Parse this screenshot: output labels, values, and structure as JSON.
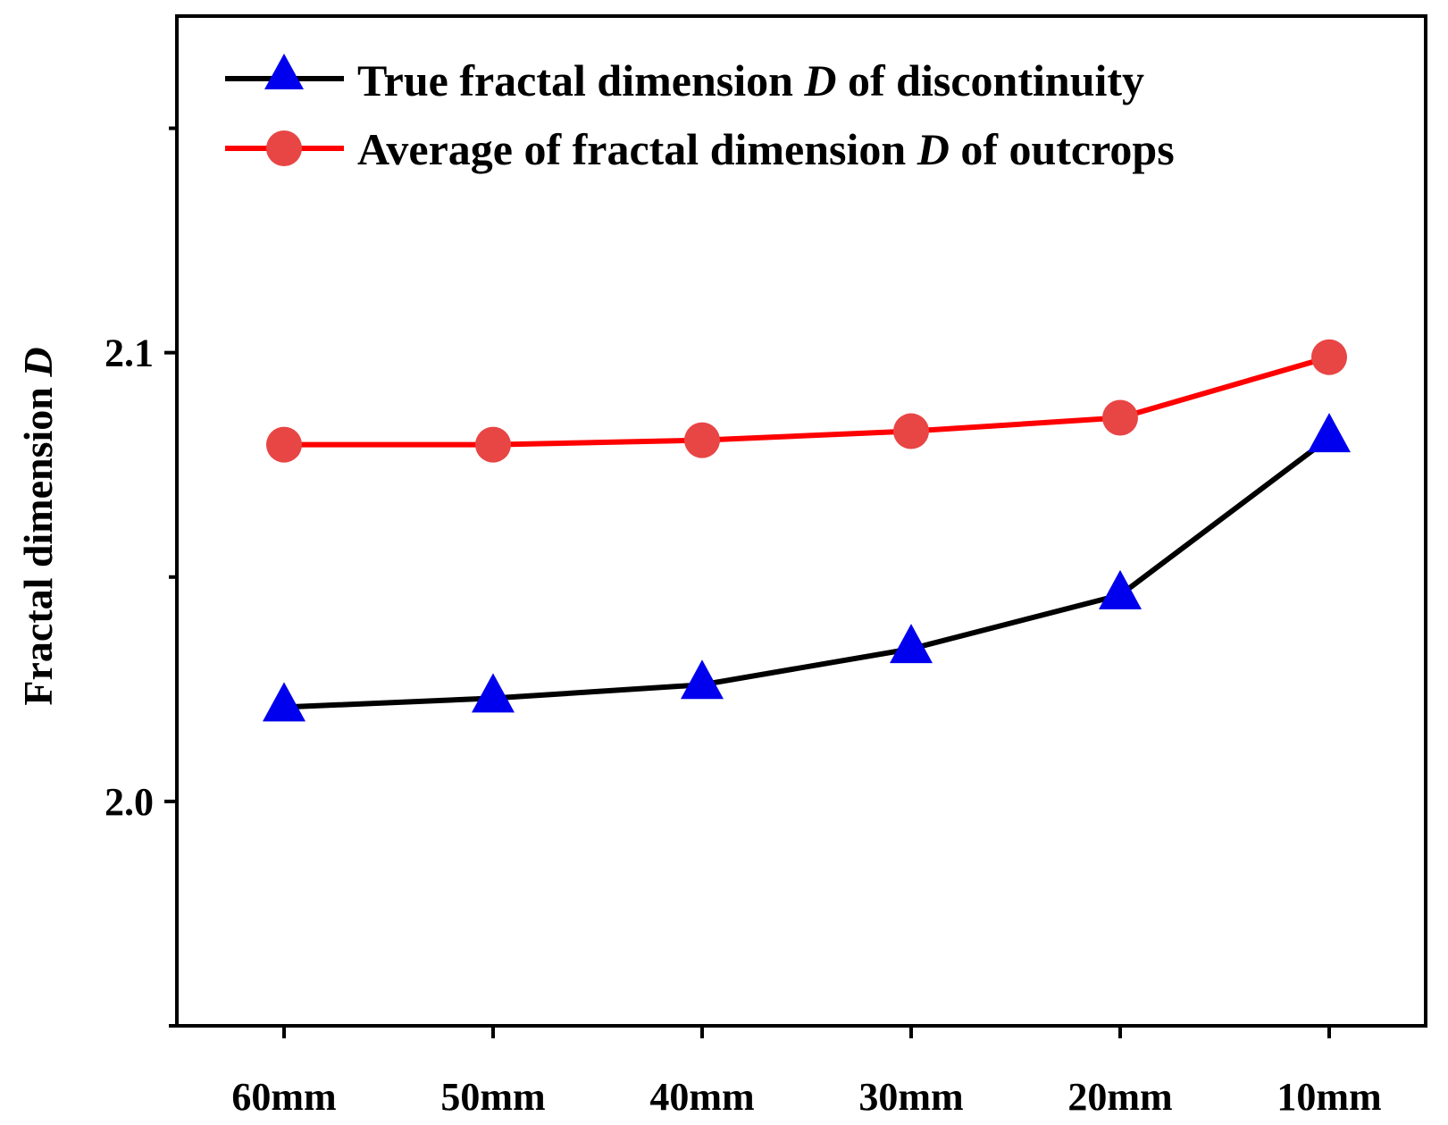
{
  "chart_data": {
    "type": "line",
    "title": "",
    "xlabel": "",
    "ylabel": "Fractal dimension D",
    "ylabel_parts": {
      "text": "Fractal dimension ",
      "italic": "D"
    },
    "categories": [
      "60mm",
      "50mm",
      "40mm",
      "30mm",
      "20mm",
      "10mm"
    ],
    "ylim": [
      1.95,
      2.175
    ],
    "yticks": [
      2.0,
      2.1
    ],
    "ytick_labels": [
      "2.0",
      "2.1"
    ],
    "yminor_ticks": [
      1.95,
      2.05,
      2.15
    ],
    "grid": false,
    "legend_position": "top-left",
    "series": [
      {
        "name": "True fractal dimension D of discontinuity",
        "legend_parts": {
          "before": "True fractal dimension ",
          "italic": "D",
          "after": " of discontinuity"
        },
        "color": "#000000",
        "marker": "triangle",
        "marker_color": "#0000ee",
        "values": [
          2.021,
          2.023,
          2.026,
          2.034,
          2.046,
          2.081
        ]
      },
      {
        "name": "Average of fractal dimension D of outcrops",
        "legend_parts": {
          "before": "Average of fractal dimension ",
          "italic": "D",
          "after": " of outcrops"
        },
        "color": "#ff0000",
        "marker": "circle",
        "marker_color": "#e84545",
        "values": [
          2.0795,
          2.0795,
          2.0805,
          2.0825,
          2.0855,
          2.099
        ]
      }
    ]
  }
}
